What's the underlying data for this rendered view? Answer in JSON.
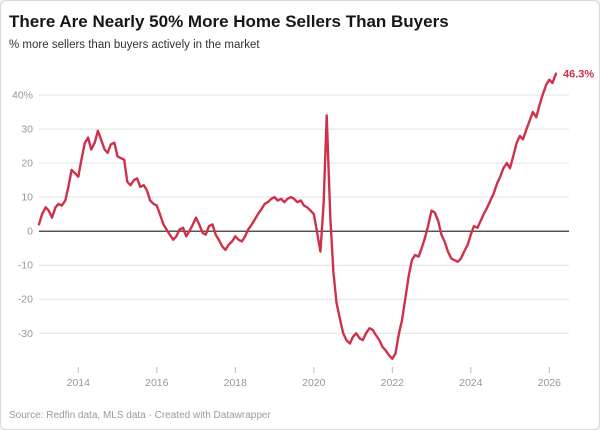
{
  "header": {
    "title": "There Are Nearly 50% More Home Sellers Than Buyers",
    "subtitle": "% more sellers than buyers actively in the market"
  },
  "footer": {
    "text": "Source: Redfin data, MLS data · Created with Datawrapper"
  },
  "chart_data": {
    "type": "line",
    "title": "There Are Nearly 50% More Home Sellers Than Buyers",
    "subtitle": "% more sellers than buyers actively in the market",
    "xlabel": "",
    "ylabel": "% more sellers than buyers",
    "xlim": [
      2013.0,
      2026.4
    ],
    "ylim": [
      -40.5,
      50
    ],
    "grid": true,
    "legend": "none",
    "line_color": "#d0314a",
    "zero_line_color": "#1d1d1d",
    "end_label": "46.3%",
    "yticks": [
      {
        "v": 40,
        "label": "40%"
      },
      {
        "v": 30,
        "label": "30"
      },
      {
        "v": 20,
        "label": "20"
      },
      {
        "v": 10,
        "label": "10"
      },
      {
        "v": 0,
        "label": "0"
      },
      {
        "v": -10,
        "label": "-10"
      },
      {
        "v": -20,
        "label": "-20"
      },
      {
        "v": -30,
        "label": "-30"
      }
    ],
    "xticks": [
      {
        "v": 2014,
        "label": "2014"
      },
      {
        "v": 2016,
        "label": "2016"
      },
      {
        "v": 2018,
        "label": "2018"
      },
      {
        "v": 2020,
        "label": "2020"
      },
      {
        "v": 2022,
        "label": "2022"
      },
      {
        "v": 2024,
        "label": "2024"
      },
      {
        "v": 2026,
        "label": "2026"
      }
    ],
    "series": [
      {
        "name": "% more sellers than buyers",
        "points": [
          [
            2013.0,
            2
          ],
          [
            2013.08,
            5
          ],
          [
            2013.17,
            7
          ],
          [
            2013.25,
            6
          ],
          [
            2013.33,
            4
          ],
          [
            2013.42,
            7
          ],
          [
            2013.5,
            8
          ],
          [
            2013.58,
            7.5
          ],
          [
            2013.67,
            9
          ],
          [
            2013.75,
            13
          ],
          [
            2013.83,
            18
          ],
          [
            2013.92,
            17
          ],
          [
            2014.0,
            16
          ],
          [
            2014.08,
            21
          ],
          [
            2014.17,
            26
          ],
          [
            2014.25,
            27.5
          ],
          [
            2014.33,
            24
          ],
          [
            2014.42,
            26
          ],
          [
            2014.5,
            29.5
          ],
          [
            2014.58,
            27
          ],
          [
            2014.67,
            24
          ],
          [
            2014.75,
            23
          ],
          [
            2014.83,
            25.5
          ],
          [
            2014.92,
            26
          ],
          [
            2015.0,
            22
          ],
          [
            2015.08,
            21.5
          ],
          [
            2015.17,
            21
          ],
          [
            2015.25,
            14.5
          ],
          [
            2015.33,
            13.5
          ],
          [
            2015.42,
            15
          ],
          [
            2015.5,
            15.5
          ],
          [
            2015.58,
            13
          ],
          [
            2015.67,
            13.5
          ],
          [
            2015.75,
            12
          ],
          [
            2015.83,
            9
          ],
          [
            2015.92,
            8
          ],
          [
            2016.0,
            7.5
          ],
          [
            2016.08,
            5
          ],
          [
            2016.17,
            2
          ],
          [
            2016.25,
            0.5
          ],
          [
            2016.33,
            -1
          ],
          [
            2016.42,
            -2.5
          ],
          [
            2016.5,
            -1.5
          ],
          [
            2016.58,
            0.5
          ],
          [
            2016.67,
            1
          ],
          [
            2016.75,
            -1.5
          ],
          [
            2016.83,
            0
          ],
          [
            2016.92,
            2
          ],
          [
            2017.0,
            4
          ],
          [
            2017.08,
            2
          ],
          [
            2017.17,
            -0.5
          ],
          [
            2017.25,
            -1
          ],
          [
            2017.33,
            1.5
          ],
          [
            2017.42,
            2
          ],
          [
            2017.5,
            -1
          ],
          [
            2017.58,
            -2.5
          ],
          [
            2017.67,
            -4.5
          ],
          [
            2017.75,
            -5.5
          ],
          [
            2017.83,
            -4
          ],
          [
            2017.92,
            -3
          ],
          [
            2018.0,
            -1.5
          ],
          [
            2018.08,
            -2.5
          ],
          [
            2018.17,
            -3
          ],
          [
            2018.25,
            -1.5
          ],
          [
            2018.33,
            0.5
          ],
          [
            2018.42,
            2
          ],
          [
            2018.5,
            3.5
          ],
          [
            2018.58,
            5
          ],
          [
            2018.67,
            6.5
          ],
          [
            2018.75,
            8
          ],
          [
            2018.83,
            8.5
          ],
          [
            2018.92,
            9.5
          ],
          [
            2019.0,
            10
          ],
          [
            2019.08,
            9
          ],
          [
            2019.17,
            9.5
          ],
          [
            2019.25,
            8.5
          ],
          [
            2019.33,
            9.5
          ],
          [
            2019.42,
            10
          ],
          [
            2019.5,
            9.5
          ],
          [
            2019.58,
            8.5
          ],
          [
            2019.67,
            9
          ],
          [
            2019.75,
            7.5
          ],
          [
            2019.83,
            7
          ],
          [
            2019.92,
            6
          ],
          [
            2020.0,
            5
          ],
          [
            2020.08,
            0
          ],
          [
            2020.17,
            -6
          ],
          [
            2020.25,
            8
          ],
          [
            2020.33,
            34
          ],
          [
            2020.42,
            4
          ],
          [
            2020.5,
            -12
          ],
          [
            2020.58,
            -21
          ],
          [
            2020.67,
            -26
          ],
          [
            2020.75,
            -30
          ],
          [
            2020.83,
            -32
          ],
          [
            2020.92,
            -33
          ],
          [
            2021.0,
            -31
          ],
          [
            2021.08,
            -30
          ],
          [
            2021.17,
            -31.5
          ],
          [
            2021.25,
            -32
          ],
          [
            2021.33,
            -30
          ],
          [
            2021.42,
            -28.5
          ],
          [
            2021.5,
            -29
          ],
          [
            2021.58,
            -30.5
          ],
          [
            2021.67,
            -32
          ],
          [
            2021.75,
            -34
          ],
          [
            2021.83,
            -35
          ],
          [
            2021.92,
            -36.5
          ],
          [
            2022.0,
            -37.5
          ],
          [
            2022.08,
            -36
          ],
          [
            2022.17,
            -30
          ],
          [
            2022.25,
            -26
          ],
          [
            2022.33,
            -20
          ],
          [
            2022.42,
            -13
          ],
          [
            2022.5,
            -8.5
          ],
          [
            2022.58,
            -7
          ],
          [
            2022.67,
            -7.5
          ],
          [
            2022.75,
            -5
          ],
          [
            2022.83,
            -2
          ],
          [
            2022.92,
            2
          ],
          [
            2023.0,
            6
          ],
          [
            2023.08,
            5.5
          ],
          [
            2023.17,
            3
          ],
          [
            2023.25,
            -1
          ],
          [
            2023.33,
            -3
          ],
          [
            2023.42,
            -6
          ],
          [
            2023.5,
            -8
          ],
          [
            2023.58,
            -8.5
          ],
          [
            2023.67,
            -9
          ],
          [
            2023.75,
            -8
          ],
          [
            2023.83,
            -6
          ],
          [
            2023.92,
            -4
          ],
          [
            2024.0,
            -1
          ],
          [
            2024.08,
            1.5
          ],
          [
            2024.17,
            1
          ],
          [
            2024.25,
            3
          ],
          [
            2024.33,
            5
          ],
          [
            2024.42,
            7
          ],
          [
            2024.5,
            9
          ],
          [
            2024.58,
            11
          ],
          [
            2024.67,
            14
          ],
          [
            2024.75,
            16
          ],
          [
            2024.83,
            18.5
          ],
          [
            2024.92,
            20
          ],
          [
            2025.0,
            18.5
          ],
          [
            2025.08,
            22
          ],
          [
            2025.17,
            26
          ],
          [
            2025.25,
            28
          ],
          [
            2025.33,
            27
          ],
          [
            2025.42,
            30
          ],
          [
            2025.5,
            32.5
          ],
          [
            2025.58,
            35
          ],
          [
            2025.67,
            33.5
          ],
          [
            2025.75,
            37
          ],
          [
            2025.83,
            40
          ],
          [
            2025.92,
            43
          ],
          [
            2026.0,
            44.5
          ],
          [
            2026.08,
            43.5
          ],
          [
            2026.17,
            46.3
          ]
        ]
      }
    ]
  }
}
